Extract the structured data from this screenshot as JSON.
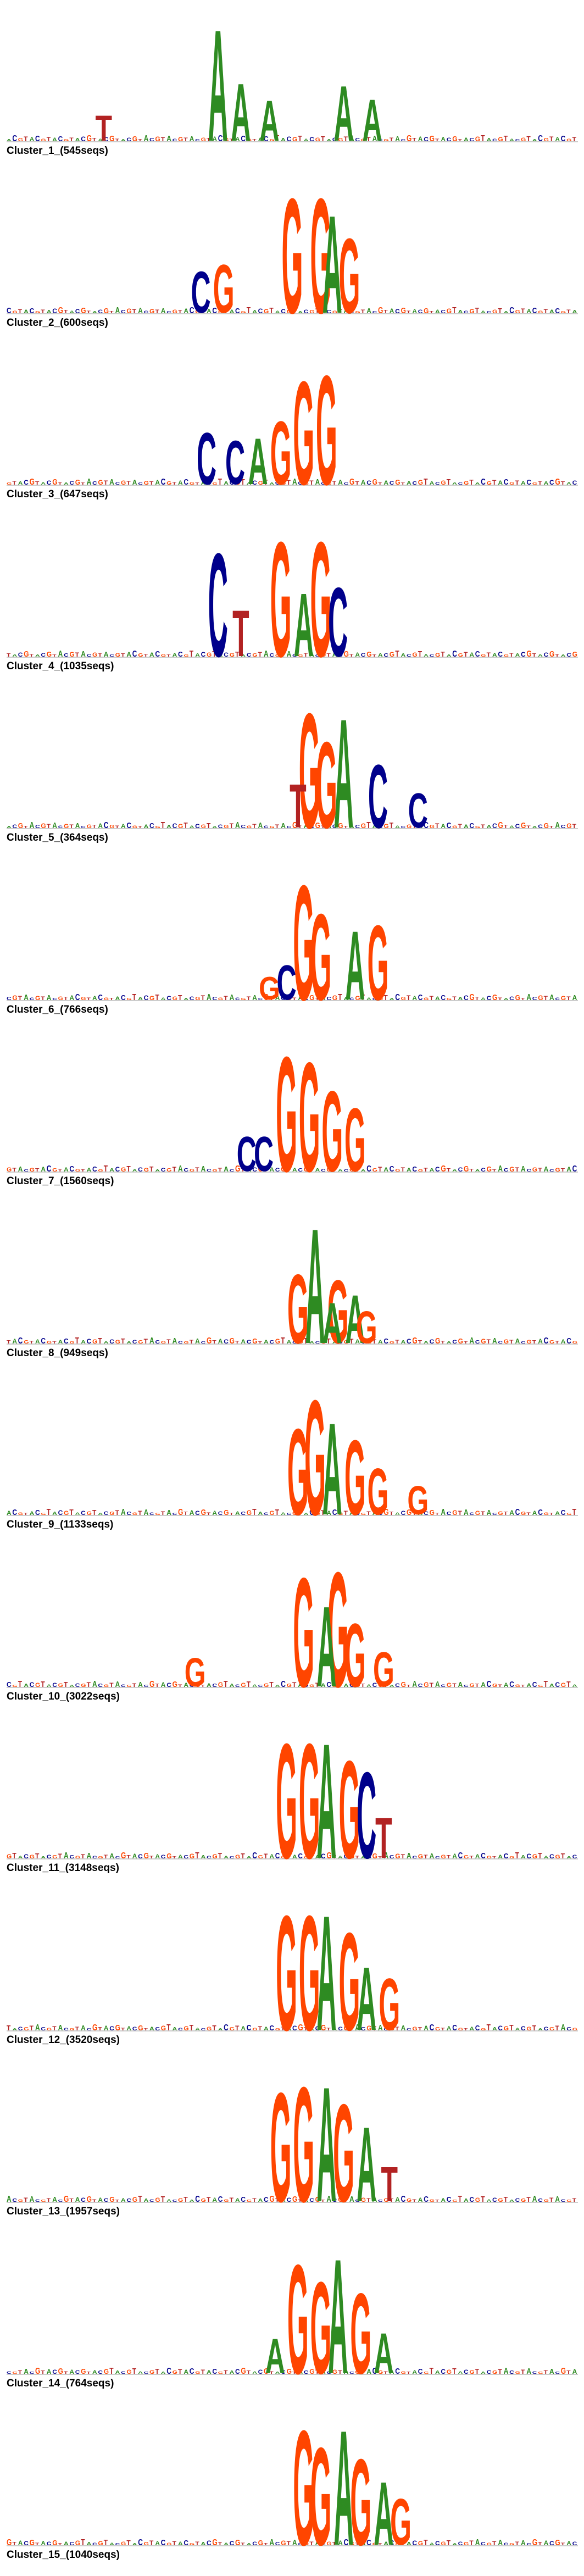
{
  "colors": {
    "A": "#2e8b22",
    "C": "#00008b",
    "G": "#ff4500",
    "T": "#b22222"
  },
  "clusters": [
    {
      "label": "Cluster_1_(545seqs)",
      "letters": [
        {
          "b": "A",
          "p": 0.37,
          "h": 0.97
        },
        {
          "b": "A",
          "p": 0.59,
          "h": 0.48
        },
        {
          "b": "A",
          "p": 0.64,
          "h": 0.36
        },
        {
          "b": "A",
          "p": 0.41,
          "h": 0.5
        },
        {
          "b": "T",
          "p": 0.17,
          "h": 0.22
        },
        {
          "b": "A",
          "p": 0.46,
          "h": 0.35
        }
      ]
    },
    {
      "label": "Cluster_2_(600seqs)",
      "letters": [
        {
          "b": "G",
          "p": 0.5,
          "h": 1.0
        },
        {
          "b": "G",
          "p": 0.55,
          "h": 1.0
        },
        {
          "b": "A",
          "p": 0.57,
          "h": 0.85
        },
        {
          "b": "G",
          "p": 0.6,
          "h": 0.65
        },
        {
          "b": "G",
          "p": 0.38,
          "h": 0.42
        },
        {
          "b": "C",
          "p": 0.34,
          "h": 0.36
        }
      ]
    },
    {
      "label": "Cluster_3_(647seqs)",
      "letters": [
        {
          "b": "C",
          "p": 0.35,
          "h": 0.45
        },
        {
          "b": "C",
          "p": 0.4,
          "h": 0.38
        },
        {
          "b": "A",
          "p": 0.44,
          "h": 0.4
        },
        {
          "b": "G",
          "p": 0.48,
          "h": 0.55
        },
        {
          "b": "G",
          "p": 0.52,
          "h": 0.9
        },
        {
          "b": "G",
          "p": 0.56,
          "h": 0.95
        }
      ]
    },
    {
      "label": "Cluster_4_(1035seqs)",
      "letters": [
        {
          "b": "C",
          "p": 0.37,
          "h": 0.9
        },
        {
          "b": "G",
          "p": 0.48,
          "h": 1.0
        },
        {
          "b": "G",
          "p": 0.55,
          "h": 1.0
        },
        {
          "b": "C",
          "p": 0.58,
          "h": 0.6
        },
        {
          "b": "A",
          "p": 0.52,
          "h": 0.55
        },
        {
          "b": "T",
          "p": 0.41,
          "h": 0.4
        }
      ]
    },
    {
      "label": "Cluster_5_(364seqs)",
      "letters": [
        {
          "b": "G",
          "p": 0.53,
          "h": 1.0
        },
        {
          "b": "A",
          "p": 0.59,
          "h": 0.95
        },
        {
          "b": "G",
          "p": 0.56,
          "h": 0.75
        },
        {
          "b": "C",
          "p": 0.65,
          "h": 0.55
        },
        {
          "b": "T",
          "p": 0.51,
          "h": 0.38
        },
        {
          "b": "C",
          "p": 0.72,
          "h": 0.3
        }
      ]
    },
    {
      "label": "Cluster_6_(766seqs)",
      "letters": [
        {
          "b": "G",
          "p": 0.52,
          "h": 1.0
        },
        {
          "b": "G",
          "p": 0.55,
          "h": 0.75
        },
        {
          "b": "A",
          "p": 0.61,
          "h": 0.6
        },
        {
          "b": "G",
          "p": 0.65,
          "h": 0.65
        },
        {
          "b": "C",
          "p": 0.49,
          "h": 0.3
        },
        {
          "b": "G",
          "p": 0.46,
          "h": 0.2
        }
      ]
    },
    {
      "label": "Cluster_7_(1560seqs)",
      "letters": [
        {
          "b": "G",
          "p": 0.49,
          "h": 1.0
        },
        {
          "b": "G",
          "p": 0.53,
          "h": 0.95
        },
        {
          "b": "G",
          "p": 0.57,
          "h": 0.7
        },
        {
          "b": "G",
          "p": 0.61,
          "h": 0.55
        },
        {
          "b": "C",
          "p": 0.42,
          "h": 0.3
        },
        {
          "b": "C",
          "p": 0.45,
          "h": 0.3
        }
      ]
    },
    {
      "label": "Cluster_8_(949seqs)",
      "letters": [
        {
          "b": "A",
          "p": 0.54,
          "h": 1.0
        },
        {
          "b": "G",
          "p": 0.51,
          "h": 0.6
        },
        {
          "b": "G",
          "p": 0.58,
          "h": 0.55
        },
        {
          "b": "A",
          "p": 0.61,
          "h": 0.42
        },
        {
          "b": "A",
          "p": 0.57,
          "h": 0.35
        },
        {
          "b": "G",
          "p": 0.63,
          "h": 0.28
        }
      ]
    },
    {
      "label": "Cluster_9_(1133seqs)",
      "letters": [
        {
          "b": "G",
          "p": 0.54,
          "h": 1.0
        },
        {
          "b": "G",
          "p": 0.51,
          "h": 0.75
        },
        {
          "b": "A",
          "p": 0.57,
          "h": 0.8
        },
        {
          "b": "G",
          "p": 0.61,
          "h": 0.65
        },
        {
          "b": "G",
          "p": 0.65,
          "h": 0.4
        },
        {
          "b": "G",
          "p": 0.72,
          "h": 0.25
        }
      ]
    },
    {
      "label": "Cluster_10_(3022seqs)",
      "letters": [
        {
          "b": "G",
          "p": 0.52,
          "h": 0.95
        },
        {
          "b": "G",
          "p": 0.58,
          "h": 1.0
        },
        {
          "b": "A",
          "p": 0.56,
          "h": 0.7
        },
        {
          "b": "G",
          "p": 0.61,
          "h": 0.55
        },
        {
          "b": "G",
          "p": 0.66,
          "h": 0.3
        },
        {
          "b": "G",
          "p": 0.33,
          "h": 0.25
        }
      ]
    },
    {
      "label": "Cluster_11_(3148seqs)",
      "letters": [
        {
          "b": "G",
          "p": 0.49,
          "h": 1.0
        },
        {
          "b": "G",
          "p": 0.53,
          "h": 1.0
        },
        {
          "b": "A",
          "p": 0.56,
          "h": 1.0
        },
        {
          "b": "G",
          "p": 0.6,
          "h": 0.85
        },
        {
          "b": "C",
          "p": 0.63,
          "h": 0.75
        },
        {
          "b": "T",
          "p": 0.66,
          "h": 0.35
        }
      ]
    },
    {
      "label": "Cluster_12_(3520seqs)",
      "letters": [
        {
          "b": "G",
          "p": 0.49,
          "h": 1.0
        },
        {
          "b": "G",
          "p": 0.53,
          "h": 1.0
        },
        {
          "b": "A",
          "p": 0.56,
          "h": 1.0
        },
        {
          "b": "G",
          "p": 0.6,
          "h": 0.85
        },
        {
          "b": "A",
          "p": 0.63,
          "h": 0.55
        },
        {
          "b": "G",
          "p": 0.67,
          "h": 0.45
        }
      ]
    },
    {
      "label": "Cluster_13_(1957seqs)",
      "letters": [
        {
          "b": "G",
          "p": 0.48,
          "h": 0.95
        },
        {
          "b": "G",
          "p": 0.52,
          "h": 1.0
        },
        {
          "b": "A",
          "p": 0.56,
          "h": 1.0
        },
        {
          "b": "G",
          "p": 0.59,
          "h": 0.85
        },
        {
          "b": "A",
          "p": 0.63,
          "h": 0.65
        },
        {
          "b": "T",
          "p": 0.67,
          "h": 0.3
        }
      ]
    },
    {
      "label": "Cluster_14_(764seqs)",
      "letters": [
        {
          "b": "G",
          "p": 0.51,
          "h": 0.95
        },
        {
          "b": "G",
          "p": 0.55,
          "h": 0.8
        },
        {
          "b": "A",
          "p": 0.58,
          "h": 1.0
        },
        {
          "b": "G",
          "p": 0.62,
          "h": 0.7
        },
        {
          "b": "A",
          "p": 0.66,
          "h": 0.35
        },
        {
          "b": "A",
          "p": 0.47,
          "h": 0.3
        }
      ]
    },
    {
      "label": "Cluster_15_(1040seqs)",
      "letters": [
        {
          "b": "G",
          "p": 0.52,
          "h": 1.0
        },
        {
          "b": "G",
          "p": 0.55,
          "h": 0.85
        },
        {
          "b": "A",
          "p": 0.59,
          "h": 1.0
        },
        {
          "b": "G",
          "p": 0.62,
          "h": 0.75
        },
        {
          "b": "A",
          "p": 0.66,
          "h": 0.55
        },
        {
          "b": "G",
          "p": 0.69,
          "h": 0.4
        }
      ]
    }
  ]
}
